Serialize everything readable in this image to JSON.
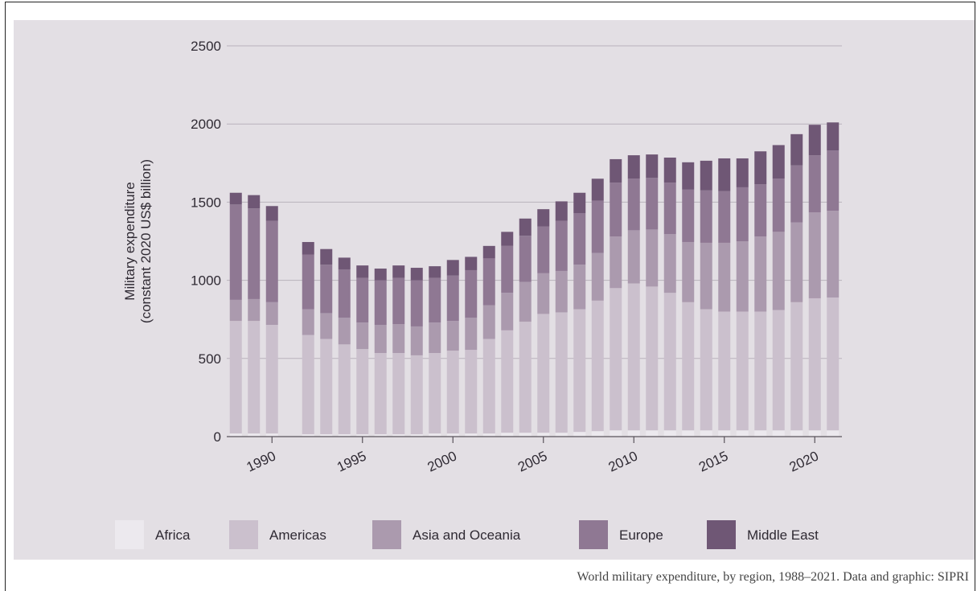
{
  "caption": "World military expenditure, by region, 1988–2021. Data and graphic: SIPRI",
  "chart_data": {
    "type": "bar",
    "stacked": true,
    "title": "",
    "xlabel": "",
    "ylabel": "Military expenditure\n(constant 2020 US$ billion)",
    "ylim": [
      0,
      2500
    ],
    "yticks": [
      0,
      500,
      1000,
      1500,
      2000,
      2500
    ],
    "xticks": [
      1990,
      1995,
      2000,
      2005,
      2010,
      2015,
      2020
    ],
    "grid": true,
    "legend_position": "bottom",
    "categories": [
      1988,
      1989,
      1990,
      1992,
      1993,
      1994,
      1995,
      1996,
      1997,
      1998,
      1999,
      2000,
      2001,
      2002,
      2003,
      2004,
      2005,
      2006,
      2007,
      2008,
      2009,
      2010,
      2011,
      2012,
      2013,
      2014,
      2015,
      2016,
      2017,
      2018,
      2019,
      2020,
      2021
    ],
    "series": [
      {
        "name": "Africa",
        "color": "#ece9ee",
        "values": [
          20,
          20,
          20,
          15,
          15,
          15,
          15,
          15,
          15,
          15,
          20,
          20,
          20,
          20,
          25,
          25,
          25,
          25,
          30,
          35,
          40,
          40,
          40,
          40,
          40,
          40,
          40,
          40,
          40,
          40,
          40,
          40,
          40
        ]
      },
      {
        "name": "Americas",
        "color": "#cbc0cd",
        "values": [
          720,
          720,
          695,
          635,
          610,
          575,
          545,
          520,
          520,
          505,
          515,
          530,
          535,
          605,
          655,
          710,
          760,
          770,
          785,
          835,
          910,
          940,
          920,
          880,
          820,
          775,
          760,
          760,
          760,
          770,
          820,
          845,
          850
        ]
      },
      {
        "name": "Asia and Oceania",
        "color": "#ab9aae",
        "values": [
          135,
          140,
          145,
          165,
          165,
          170,
          170,
          180,
          185,
          185,
          195,
          190,
          205,
          215,
          240,
          255,
          260,
          265,
          285,
          305,
          330,
          340,
          365,
          375,
          385,
          425,
          440,
          450,
          480,
          500,
          510,
          550,
          555
        ]
      },
      {
        "name": "Europe",
        "color": "#8f7893",
        "values": [
          610,
          580,
          520,
          350,
          310,
          310,
          285,
          285,
          295,
          295,
          285,
          290,
          305,
          300,
          300,
          295,
          300,
          320,
          330,
          335,
          345,
          330,
          330,
          330,
          335,
          335,
          330,
          345,
          335,
          340,
          365,
          365,
          385
        ]
      },
      {
        "name": "Middle East",
        "color": "#6f5775",
        "values": [
          75,
          85,
          95,
          80,
          100,
          75,
          80,
          75,
          80,
          80,
          75,
          100,
          85,
          80,
          90,
          110,
          110,
          125,
          130,
          140,
          150,
          150,
          150,
          160,
          175,
          190,
          210,
          185,
          210,
          215,
          200,
          195,
          180
        ]
      }
    ]
  }
}
